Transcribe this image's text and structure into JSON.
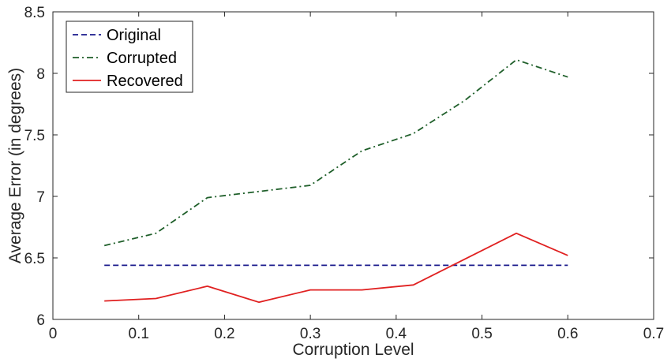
{
  "chart_data": {
    "type": "line",
    "title": "",
    "xlabel": "Corruption Level",
    "ylabel": "Average Error (in degrees)",
    "xlim": [
      0,
      0.7
    ],
    "ylim": [
      6,
      8.5
    ],
    "xticks": [
      "0",
      "0.1",
      "0.2",
      "0.3",
      "0.4",
      "0.5",
      "0.6",
      "0.7"
    ],
    "yticks": [
      "6",
      "6.5",
      "7",
      "7.5",
      "8",
      "8.5"
    ],
    "grid": false,
    "legend_position": "top-left",
    "x": [
      0.06,
      0.12,
      0.18,
      0.24,
      0.3,
      0.36,
      0.42,
      0.48,
      0.54,
      0.6
    ],
    "series": [
      {
        "name": "Original",
        "color": "#1a1a8c",
        "style": "dashed",
        "values": [
          6.44,
          6.44,
          6.44,
          6.44,
          6.44,
          6.44,
          6.44,
          6.44,
          6.44,
          6.44
        ]
      },
      {
        "name": "Corrupted",
        "color": "#1f5f2a",
        "style": "dash-dot",
        "values": [
          6.6,
          6.7,
          6.99,
          7.04,
          7.09,
          7.37,
          7.51,
          7.78,
          8.11,
          7.97
        ]
      },
      {
        "name": "Recovered",
        "color": "#e02020",
        "style": "solid",
        "values": [
          6.15,
          6.17,
          6.27,
          6.14,
          6.24,
          6.24,
          6.28,
          6.49,
          6.7,
          6.52
        ]
      }
    ]
  }
}
